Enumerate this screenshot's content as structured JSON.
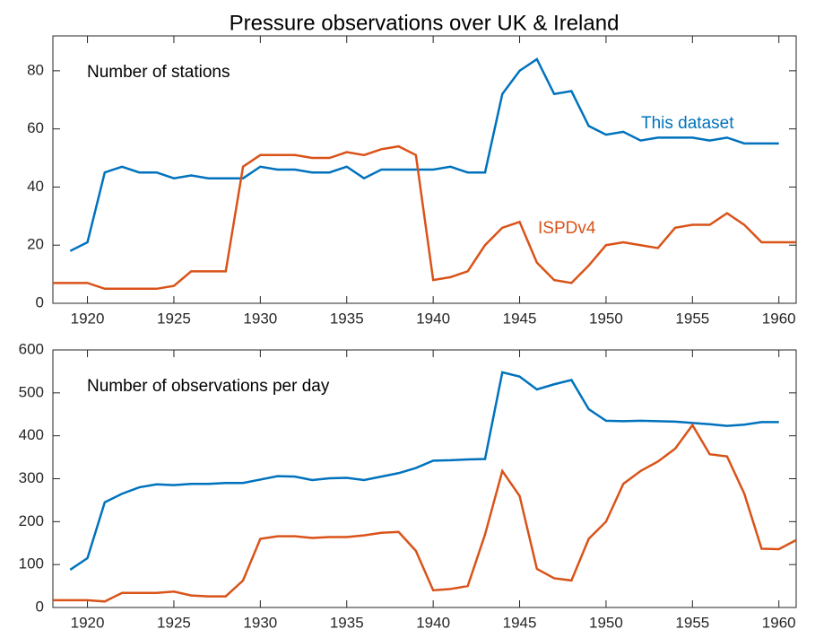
{
  "chart_data": [
    {
      "type": "line",
      "title": "Pressure observations over UK & Ireland",
      "annotation": "Number of stations",
      "x": [
        1918,
        1919,
        1920,
        1921,
        1922,
        1923,
        1924,
        1925,
        1926,
        1927,
        1928,
        1929,
        1930,
        1931,
        1932,
        1933,
        1934,
        1935,
        1936,
        1937,
        1938,
        1939,
        1940,
        1941,
        1942,
        1943,
        1944,
        1945,
        1946,
        1947,
        1948,
        1949,
        1950,
        1951,
        1952,
        1953,
        1954,
        1955,
        1956,
        1957,
        1958,
        1959,
        1960,
        1961
      ],
      "series": [
        {
          "name": "This dataset",
          "color": "#0072bd",
          "values": [
            null,
            18,
            21,
            45,
            47,
            45,
            45,
            43,
            44,
            43,
            43,
            43,
            47,
            46,
            46,
            45,
            45,
            47,
            43,
            46,
            46,
            46,
            46,
            47,
            45,
            45,
            72,
            80,
            84,
            72,
            73,
            61,
            58,
            59,
            56,
            57,
            57,
            57,
            56,
            57,
            55,
            55,
            55,
            null
          ]
        },
        {
          "name": "ISPDv4",
          "color": "#d95319",
          "values": [
            7,
            7,
            7,
            5,
            5,
            5,
            5,
            6,
            11,
            11,
            11,
            47,
            51,
            51,
            51,
            50,
            50,
            52,
            51,
            53,
            54,
            51,
            8,
            9,
            11,
            20,
            26,
            28,
            14,
            8,
            7,
            13,
            20,
            21,
            20,
            19,
            26,
            27,
            27,
            31,
            27,
            21,
            21,
            21
          ]
        }
      ],
      "xlim": [
        1918,
        1961
      ],
      "xticks": [
        1920,
        1925,
        1930,
        1935,
        1940,
        1945,
        1950,
        1955,
        1960
      ],
      "ylim": [
        0,
        92
      ],
      "yticks": [
        0,
        20,
        40,
        60,
        80
      ]
    },
    {
      "type": "line",
      "annotation": "Number of observations per day",
      "x": [
        1918,
        1919,
        1920,
        1921,
        1922,
        1923,
        1924,
        1925,
        1926,
        1927,
        1928,
        1929,
        1930,
        1931,
        1932,
        1933,
        1934,
        1935,
        1936,
        1937,
        1938,
        1939,
        1940,
        1941,
        1942,
        1943,
        1944,
        1945,
        1946,
        1947,
        1948,
        1949,
        1950,
        1951,
        1952,
        1953,
        1954,
        1955,
        1956,
        1957,
        1958,
        1959,
        1960,
        1961
      ],
      "series": [
        {
          "color": "#0072bd",
          "values": [
            null,
            88,
            115,
            245,
            265,
            280,
            287,
            285,
            288,
            288,
            290,
            290,
            298,
            306,
            305,
            297,
            301,
            302,
            297,
            305,
            313,
            325,
            342,
            343,
            345,
            346,
            548,
            538,
            508,
            520,
            530,
            462,
            435,
            434,
            435,
            434,
            433,
            430,
            427,
            423,
            426,
            432,
            432,
            null
          ]
        },
        {
          "color": "#d95319",
          "values": [
            17,
            17,
            17,
            14,
            34,
            34,
            34,
            37,
            28,
            26,
            26,
            63,
            160,
            166,
            166,
            162,
            164,
            164,
            168,
            174,
            176,
            132,
            40,
            43,
            50,
            170,
            318,
            260,
            90,
            68,
            63,
            160,
            200,
            288,
            318,
            340,
            370,
            425,
            357,
            352,
            265,
            137,
            136,
            157
          ]
        }
      ],
      "xlim": [
        1918,
        1961
      ],
      "xticks": [
        1920,
        1925,
        1930,
        1935,
        1940,
        1945,
        1950,
        1955,
        1960
      ],
      "ylim": [
        0,
        600
      ],
      "yticks": [
        0,
        100,
        200,
        300,
        400,
        500,
        600
      ]
    }
  ]
}
